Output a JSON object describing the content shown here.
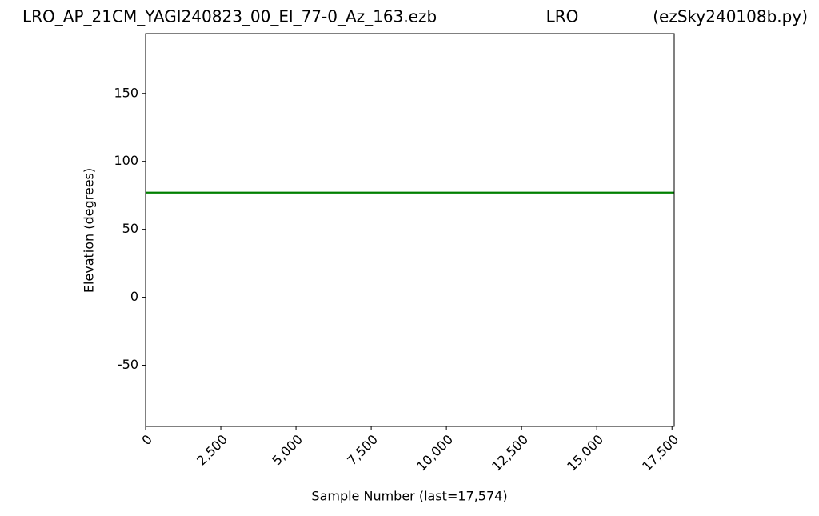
{
  "chart_data": {
    "type": "line",
    "title": [
      "LRO_AP_21CM_YAGI240823_00_El_77-0_Az_163.ezb",
      "LRO",
      "(ezSky240108b.py)"
    ],
    "x_label": "Sample Number (last=17,574)",
    "y_label": "Elevation (degrees)",
    "x": [
      0,
      17574
    ],
    "series": [
      {
        "name": "Elevation",
        "color": "#008000",
        "values": [
          77,
          77
        ]
      }
    ],
    "xlim": [
      0,
      17574
    ],
    "xticks": [
      0,
      {
        "value": 2500,
        "label": "2,500"
      },
      {
        "value": 5000,
        "label": "5,000"
      },
      {
        "value": 7500,
        "label": "7,500"
      },
      {
        "value": 10000,
        "label": "10,000"
      },
      {
        "value": 12500,
        "label": "12,500"
      },
      {
        "value": 15000,
        "label": "15,000"
      },
      {
        "value": 17500,
        "label": "17,500"
      }
    ],
    "ylim": [
      -95,
      194
    ],
    "yticks": [
      -50,
      0,
      50,
      100,
      150
    ],
    "grid": false
  }
}
